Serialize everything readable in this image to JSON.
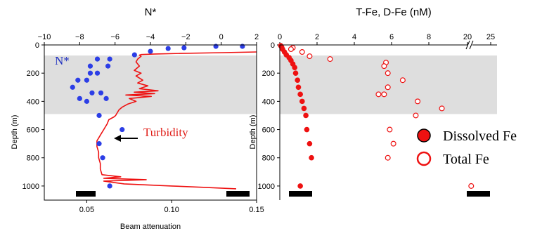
{
  "chart_data": [
    {
      "type": "line",
      "title": "N*",
      "ylabel": "Depth (m)",
      "xlabel": "Beam attenuation",
      "ylim": [
        0,
        1100
      ],
      "y_ticks": [
        0,
        200,
        400,
        600,
        800,
        1000
      ],
      "y_inverted": true,
      "xlim_bottom": [
        0.025,
        0.15
      ],
      "x_ticks_bottom": [
        0.05,
        0.1,
        0.15
      ],
      "x_tick_labels_bottom": [
        "0.05",
        "0.10",
        "0.15"
      ],
      "xlim_top": [
        -10,
        2
      ],
      "x_ticks_top": [
        -10,
        -8,
        -6,
        -4,
        -2,
        0,
        2
      ],
      "x_tick_labels_top": [
        "−10",
        "−8",
        "−6",
        "−4",
        "−2",
        "0",
        "2"
      ],
      "shaded_depth_range": [
        75,
        490
      ],
      "annotations": [
        {
          "text": "N*",
          "color": "#2030c0"
        },
        {
          "text": "Turbidity",
          "color": "#e0201a",
          "arrow": "left"
        }
      ],
      "series": [
        {
          "marker": "circle-filled",
          "color": "#2c3ee6",
          "axis": "top",
          "points": [
            [
              1.2,
              10
            ],
            [
              -0.3,
              10
            ],
            [
              -2.1,
              20
            ],
            [
              -3.0,
              25
            ],
            [
              -4.0,
              45
            ],
            [
              -4.9,
              70
            ],
            [
              -7.0,
              100
            ],
            [
              -6.3,
              100
            ],
            [
              -7.4,
              150
            ],
            [
              -6.4,
              150
            ],
            [
              -7.4,
              200
            ],
            [
              -7.0,
              200
            ],
            [
              -8.1,
              250
            ],
            [
              -7.6,
              250
            ],
            [
              -8.4,
              300
            ],
            [
              -7.3,
              340
            ],
            [
              -6.8,
              340
            ],
            [
              -8.0,
              380
            ],
            [
              -6.5,
              380
            ],
            [
              -7.6,
              400
            ],
            [
              -6.9,
              500
            ],
            [
              -5.6,
              600
            ],
            [
              -6.9,
              700
            ],
            [
              -6.7,
              800
            ],
            [
              -6.3,
              1000
            ]
          ]
        },
        {
          "marker": "line",
          "color": "#ee1111",
          "axis": "bottom",
          "points": [
            [
              0.15,
              50
            ],
            [
              0.13,
              55
            ],
            [
              0.105,
              60
            ],
            [
              0.09,
              64
            ],
            [
              0.082,
              68
            ],
            [
              0.081,
              72
            ],
            [
              0.082,
              80
            ],
            [
              0.08,
              100
            ],
            [
              0.079,
              120
            ],
            [
              0.081,
              150
            ],
            [
              0.078,
              180
            ],
            [
              0.082,
              200
            ],
            [
              0.079,
              220
            ],
            [
              0.083,
              250
            ],
            [
              0.08,
              270
            ],
            [
              0.086,
              290
            ],
            [
              0.081,
              310
            ],
            [
              0.092,
              325
            ],
            [
              0.078,
              335
            ],
            [
              0.09,
              345
            ],
            [
              0.073,
              355
            ],
            [
              0.088,
              365
            ],
            [
              0.075,
              380
            ],
            [
              0.079,
              400
            ],
            [
              0.074,
              420
            ],
            [
              0.071,
              440
            ],
            [
              0.069,
              460
            ],
            [
              0.068,
              480
            ],
            [
              0.067,
              500
            ],
            [
              0.066,
              510
            ],
            [
              0.063,
              530
            ],
            [
              0.062,
              560
            ],
            [
              0.06,
              600
            ],
            [
              0.058,
              640
            ],
            [
              0.056,
              680
            ],
            [
              0.056,
              720
            ],
            [
              0.057,
              760
            ],
            [
              0.057,
              800
            ],
            [
              0.058,
              840
            ],
            [
              0.058,
              880
            ],
            [
              0.059,
              920
            ],
            [
              0.07,
              935
            ],
            [
              0.06,
              945
            ],
            [
              0.085,
              955
            ],
            [
              0.06,
              965
            ],
            [
              0.072,
              985
            ],
            [
              0.1,
              1000
            ],
            [
              0.12,
              1010
            ],
            [
              0.138,
              1020
            ]
          ]
        }
      ]
    },
    {
      "type": "scatter",
      "title": "T-Fe, D-Fe (nM)",
      "ylabel": "Depth (m)",
      "ylim": [
        0,
        1100
      ],
      "y_ticks": [
        0,
        200,
        400,
        600,
        800,
        1000
      ],
      "y_inverted": true,
      "x_axis": "top",
      "x_axis_broken": true,
      "xlim": [
        0,
        25
      ],
      "x_ticks": [
        0,
        2,
        4,
        6,
        8,
        20,
        25
      ],
      "x_tick_labels": [
        "0",
        "2",
        "4",
        "6",
        "8",
        "20",
        "25"
      ],
      "shaded_depth_range": [
        75,
        490
      ],
      "legend": {
        "placement": "right",
        "entries": [
          "Dissolved Fe",
          "Total Fe"
        ]
      },
      "series": [
        {
          "name": "Dissolved Fe",
          "marker": "circle-filled",
          "color": "#ee1111",
          "points": [
            [
              0.05,
              5
            ],
            [
              0.1,
              15
            ],
            [
              0.15,
              30
            ],
            [
              0.25,
              50
            ],
            [
              0.35,
              70
            ],
            [
              0.5,
              90
            ],
            [
              0.6,
              110
            ],
            [
              0.7,
              135
            ],
            [
              0.8,
              160
            ],
            [
              0.85,
              200
            ],
            [
              0.95,
              250
            ],
            [
              1.0,
              300
            ],
            [
              1.1,
              350
            ],
            [
              1.2,
              400
            ],
            [
              1.3,
              450
            ],
            [
              1.4,
              500
            ],
            [
              1.45,
              600
            ],
            [
              1.6,
              700
            ],
            [
              1.7,
              800
            ],
            [
              1.1,
              1000
            ]
          ]
        },
        {
          "name": "Total Fe",
          "marker": "circle-open",
          "color": "#ee1111",
          "points": [
            [
              0.7,
              20
            ],
            [
              0.6,
              30
            ],
            [
              1.2,
              50
            ],
            [
              1.6,
              80
            ],
            [
              2.7,
              100
            ],
            [
              5.7,
              125
            ],
            [
              5.6,
              150
            ],
            [
              5.8,
              200
            ],
            [
              6.6,
              250
            ],
            [
              5.8,
              300
            ],
            [
              5.6,
              350
            ],
            [
              5.3,
              350
            ],
            [
              7.4,
              400
            ],
            [
              8.7,
              450
            ],
            [
              7.3,
              500
            ],
            [
              5.9,
              600
            ],
            [
              6.1,
              700
            ],
            [
              5.8,
              800
            ],
            [
              20.8,
              1000
            ]
          ]
        }
      ]
    }
  ]
}
